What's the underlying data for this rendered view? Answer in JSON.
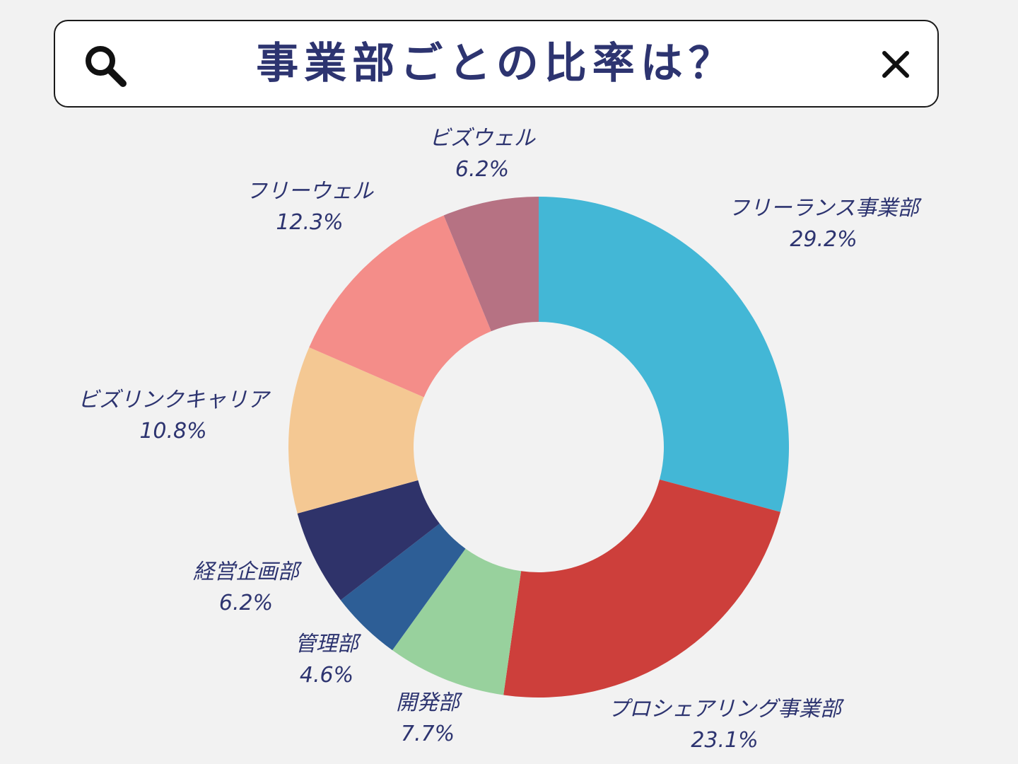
{
  "search": {
    "query": "事業部ごとの比率は？",
    "search_icon": "search-icon",
    "close_icon": "close-icon"
  },
  "chart_data": {
    "type": "pie",
    "donut": true,
    "title": "事業部ごとの比率は？",
    "start": "top",
    "direction": "clockwise",
    "slices": [
      {
        "name": "フリーランス事業部",
        "value": 29.2,
        "label": "29.2%",
        "color": "#43b7d6"
      },
      {
        "name": "プロシェアリング事業部",
        "value": 23.1,
        "label": "23.1%",
        "color": "#cd3f3b"
      },
      {
        "name": "開発部",
        "value": 7.7,
        "label": "7.7%",
        "color": "#98d19d"
      },
      {
        "name": "管理部",
        "value": 4.6,
        "label": "4.6%",
        "color": "#2d5e96"
      },
      {
        "name": "経営企画部",
        "value": 6.2,
        "label": "6.2%",
        "color": "#2f336a"
      },
      {
        "name": "ビズリンクキャリア",
        "value": 10.8,
        "label": "10.8%",
        "color": "#f4c893"
      },
      {
        "name": "フリーウェル",
        "value": 12.3,
        "label": "12.3%",
        "color": "#f48d89"
      },
      {
        "name": "ビズウェル",
        "value": 6.2,
        "label": "6.2%",
        "color": "#b67283"
      }
    ]
  }
}
